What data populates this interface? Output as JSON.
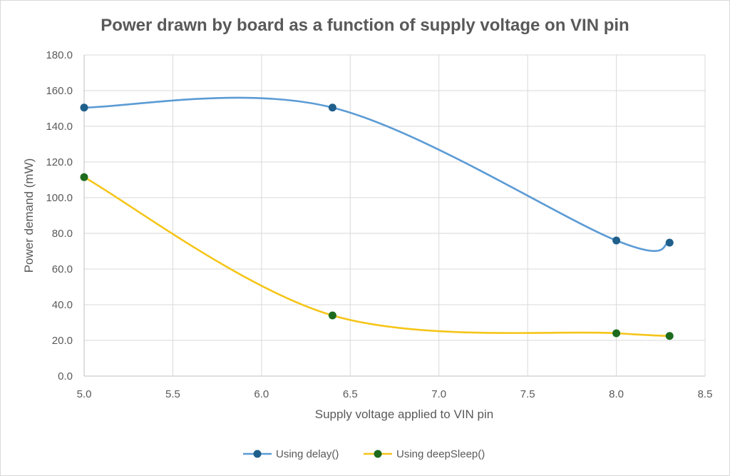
{
  "chart_data": {
    "type": "scatter",
    "title": "Power drawn by board as a function of supply voltage on VIN pin",
    "xlabel": "Supply voltage applied to VIN pin",
    "ylabel": "Power demand (mW)",
    "xlim": [
      5.0,
      8.5
    ],
    "ylim": [
      0,
      180
    ],
    "x_ticks": [
      "5.0",
      "5.5",
      "6.0",
      "6.5",
      "7.0",
      "7.5",
      "8.0",
      "8.5"
    ],
    "y_ticks": [
      "0.0",
      "20.0",
      "40.0",
      "60.0",
      "80.0",
      "100.0",
      "120.0",
      "140.0",
      "160.0",
      "180.0"
    ],
    "grid": true,
    "smooth_lines": true,
    "legend_position": "bottom",
    "series": [
      {
        "name": "Using delay()",
        "line_color": "#5b9bd5",
        "marker_color": "#1f5f8b",
        "x": [
          5.0,
          6.4,
          8.0,
          8.3
        ],
        "y": [
          150.5,
          150.5,
          76.0,
          74.8
        ]
      },
      {
        "name": "Using deepSleep()",
        "line_color": "#f5c518",
        "marker_color": "#1e6b1e",
        "x": [
          5.0,
          6.4,
          8.0,
          8.3
        ],
        "y": [
          111.5,
          34.0,
          24.0,
          22.5
        ]
      }
    ]
  }
}
